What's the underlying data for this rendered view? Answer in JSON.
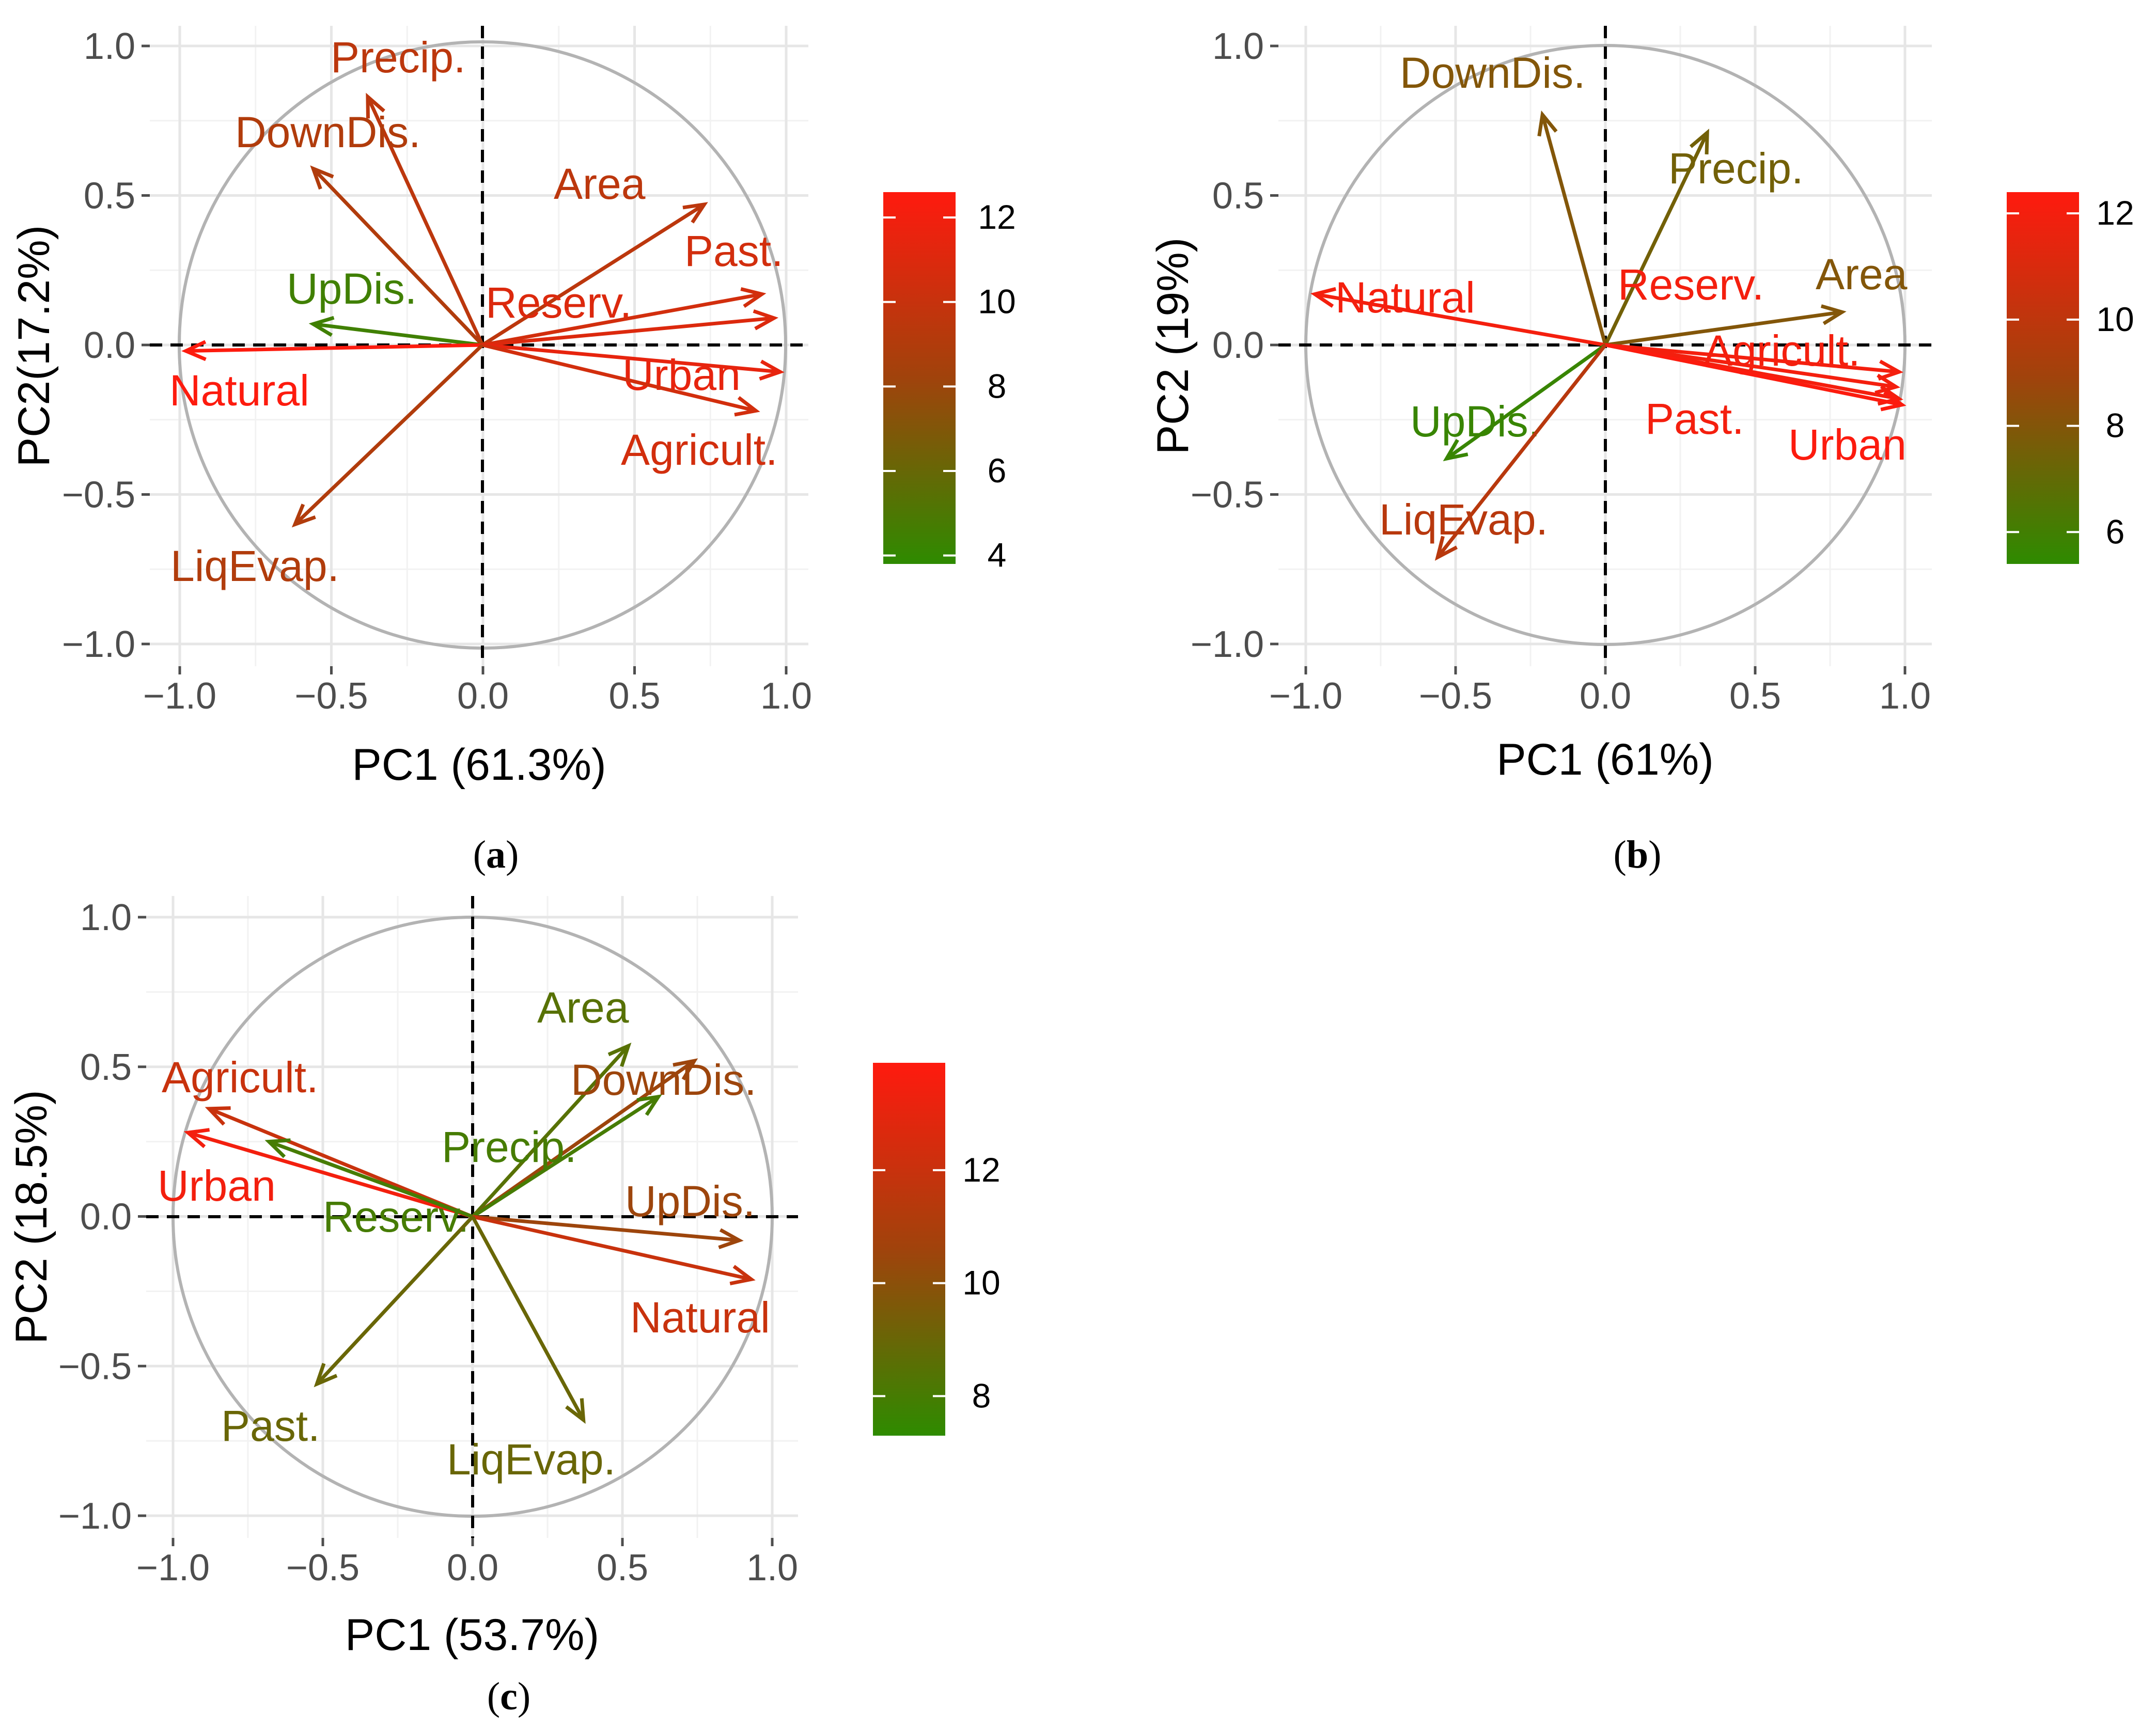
{
  "chart_data": [
    {
      "type": "pca-biplot",
      "panel": "a",
      "xlabel": "PC1 (61.3%)",
      "ylabel": "PC2(17.2%)",
      "xlim": [
        -1.0,
        1.0
      ],
      "ylim": [
        -1.0,
        1.0
      ],
      "xticks": [
        "−1.0",
        "−0.5",
        "0.0",
        "0.5",
        "1.0"
      ],
      "yticks": [
        "−1.0",
        "−0.5",
        "0.0",
        "0.5",
        "1.0"
      ],
      "colorbar": {
        "min": 3.8,
        "max": 12.6,
        "ticks": [
          4,
          6,
          8,
          10,
          12
        ],
        "low_color": "#2e8b00",
        "mid_color": "#a0430c",
        "high_color": "#ff1a0e"
      },
      "variables": [
        {
          "name": "Precip.",
          "x": -0.38,
          "y": 0.83,
          "contrib": 9.5
        },
        {
          "name": "DownDis.",
          "x": -0.56,
          "y": 0.59,
          "contrib": 9.0
        },
        {
          "name": "Area",
          "x": 0.73,
          "y": 0.47,
          "contrib": 9.5
        },
        {
          "name": "Past.",
          "x": 0.92,
          "y": 0.17,
          "contrib": 10.5
        },
        {
          "name": "Reserv.",
          "x": 0.96,
          "y": 0.09,
          "contrib": 11.0
        },
        {
          "name": "UpDis.",
          "x": -0.56,
          "y": 0.07,
          "contrib": 4.5
        },
        {
          "name": "Natural",
          "x": -0.98,
          "y": -0.02,
          "contrib": 12.5
        },
        {
          "name": "Urban",
          "x": 0.98,
          "y": -0.09,
          "contrib": 11.5
        },
        {
          "name": "Agricult.",
          "x": 0.9,
          "y": -0.22,
          "contrib": 10.5
        },
        {
          "name": "LiqEvap.",
          "x": -0.62,
          "y": -0.6,
          "contrib": 9.0
        }
      ]
    },
    {
      "type": "pca-biplot",
      "panel": "b",
      "xlabel": "PC1 (61%)",
      "ylabel": "PC2 (19%)",
      "xlim": [
        -1.0,
        1.0
      ],
      "ylim": [
        -1.0,
        1.0
      ],
      "xticks": [
        "−1.0",
        "−0.5",
        "0.0",
        "0.5",
        "1.0"
      ],
      "yticks": [
        "−1.0",
        "−0.5",
        "0.0",
        "0.5",
        "1.0"
      ],
      "colorbar": {
        "min": 5.4,
        "max": 12.4,
        "ticks": [
          6,
          8,
          10,
          12
        ],
        "low_color": "#2e8b00",
        "mid_color": "#a0430c",
        "high_color": "#ff1a0e"
      },
      "variables": [
        {
          "name": "DownDis.",
          "x": -0.21,
          "y": 0.77,
          "contrib": 8.0
        },
        {
          "name": "Precip.",
          "x": 0.34,
          "y": 0.71,
          "contrib": 7.5
        },
        {
          "name": "Natural",
          "x": -0.97,
          "y": 0.17,
          "contrib": 12.0
        },
        {
          "name": "Reserv.",
          "x": 0.98,
          "y": -0.18,
          "contrib": 12.0
        },
        {
          "name": "Area",
          "x": 0.79,
          "y": 0.11,
          "contrib": 8.0
        },
        {
          "name": "Agricult.",
          "x": 0.98,
          "y": -0.09,
          "contrib": 12.0
        },
        {
          "name": "Past.",
          "x": 0.97,
          "y": -0.14,
          "contrib": 12.0
        },
        {
          "name": "Urban",
          "x": 0.99,
          "y": -0.2,
          "contrib": 12.3
        },
        {
          "name": "UpDis.",
          "x": -0.53,
          "y": -0.38,
          "contrib": 5.7
        },
        {
          "name": "LiqEvap.",
          "x": -0.56,
          "y": -0.71,
          "contrib": 9.8
        }
      ]
    },
    {
      "type": "pca-biplot",
      "panel": "c",
      "xlabel": "PC1 (53.7%)",
      "ylabel": "PC2 (18.5%)",
      "xlim": [
        -1.0,
        1.0
      ],
      "ylim": [
        -1.0,
        1.0
      ],
      "xticks": [
        "−1.0",
        "−0.5",
        "0.0",
        "0.5",
        "1.0"
      ],
      "yticks": [
        "−1.0",
        "−0.5",
        "0.0",
        "0.5",
        "1.0"
      ],
      "colorbar": {
        "min": 7.3,
        "max": 13.9,
        "ticks": [
          8,
          10,
          12
        ],
        "low_color": "#2e8b00",
        "mid_color": "#a0430c",
        "high_color": "#ff1a0e"
      },
      "variables": [
        {
          "name": "Area",
          "x": 0.52,
          "y": 0.57,
          "contrib": 8.5
        },
        {
          "name": "DownDis.",
          "x": 0.74,
          "y": 0.52,
          "contrib": 10.5
        },
        {
          "name": "Precip.",
          "x": 0.62,
          "y": 0.4,
          "contrib": 8.0
        },
        {
          "name": "Agricult.",
          "x": -0.88,
          "y": 0.36,
          "contrib": 12.0
        },
        {
          "name": "Urban",
          "x": -0.95,
          "y": 0.28,
          "contrib": 13.5
        },
        {
          "name": "Reserv.",
          "x": -0.68,
          "y": 0.25,
          "contrib": 8.0
        },
        {
          "name": "UpDis.",
          "x": 0.89,
          "y": -0.08,
          "contrib": 10.5
        },
        {
          "name": "Natural",
          "x": 0.93,
          "y": -0.21,
          "contrib": 12.0
        },
        {
          "name": "Past.",
          "x": -0.52,
          "y": -0.56,
          "contrib": 9.0
        },
        {
          "name": "LiqEvap.",
          "x": 0.37,
          "y": -0.68,
          "contrib": 9.0
        }
      ]
    }
  ],
  "captions": {
    "a": {
      "open": "(",
      "letter": "a",
      "close": ")"
    },
    "b": {
      "open": "(",
      "letter": "b",
      "close": ")"
    },
    "c": {
      "open": "(",
      "letter": "c",
      "close": ")"
    }
  }
}
